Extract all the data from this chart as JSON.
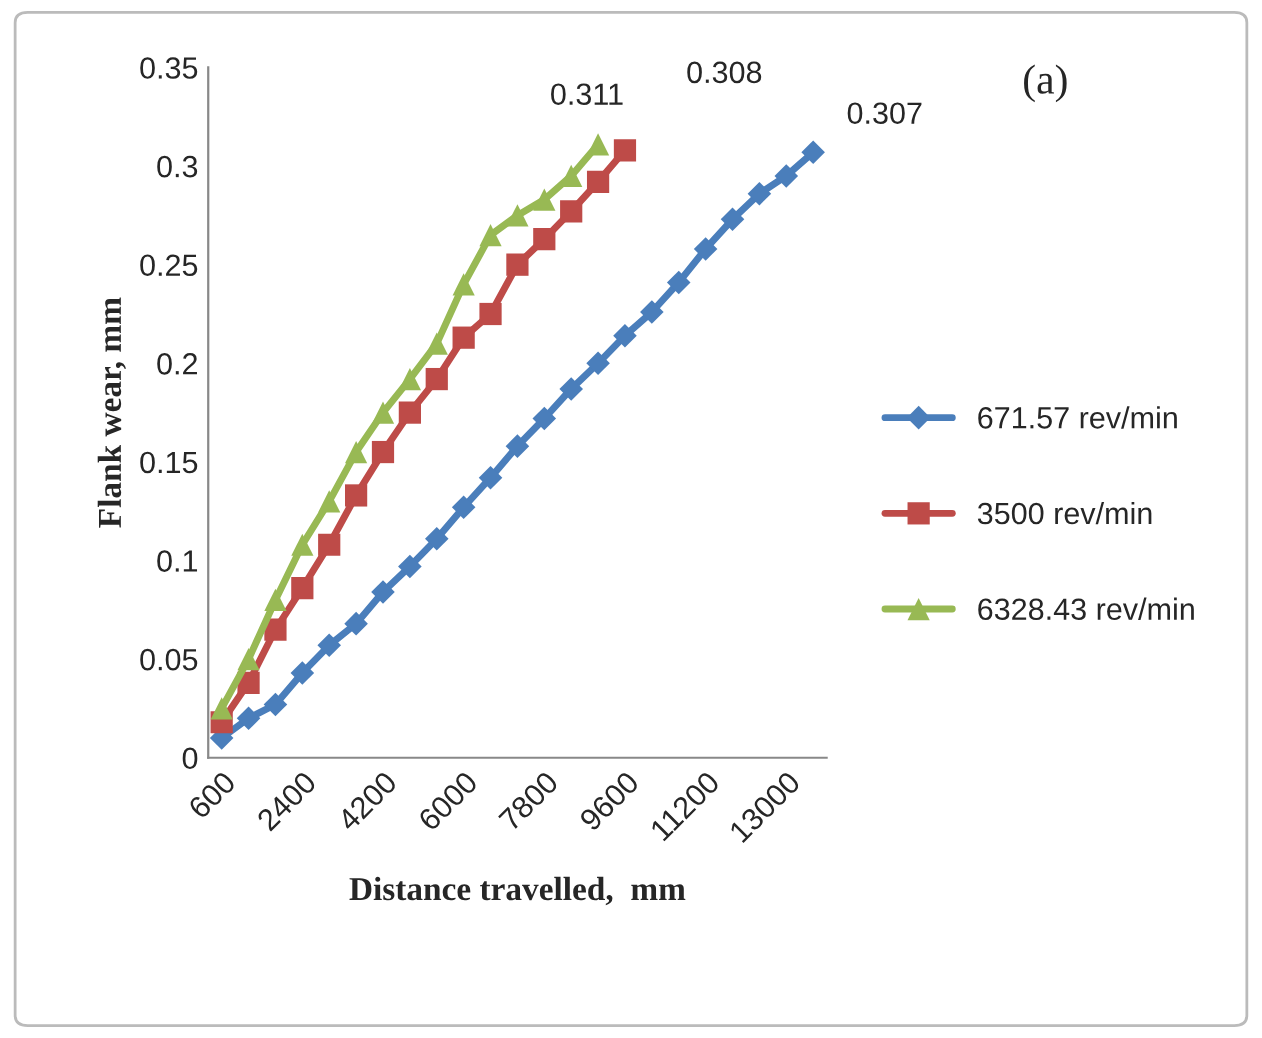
{
  "chart_data": {
    "type": "line",
    "xlabel": "Distance travelled,  mm",
    "ylabel": "Flank wear, mm",
    "categories": [
      "600",
      null,
      null,
      "2400",
      null,
      null,
      "4200",
      null,
      null,
      "6000",
      null,
      null,
      "7800",
      null,
      null,
      "9600",
      null,
      null,
      "11200",
      null,
      null,
      "13000",
      null
    ],
    "series": [
      {
        "name": "671.57 rev/min",
        "color": "#4a7ebb",
        "marker": "diamond",
        "values": [
          0.01,
          0.02,
          0.027,
          0.043,
          0.057,
          0.068,
          0.084,
          0.097,
          0.111,
          0.127,
          0.142,
          0.158,
          0.172,
          0.187,
          0.2,
          0.214,
          0.226,
          0.241,
          0.258,
          0.273,
          0.286,
          0.295,
          0.307
        ],
        "value_labels": [
          null,
          null,
          null,
          null,
          null,
          null,
          null,
          null,
          null,
          null,
          null,
          null,
          null,
          null,
          null,
          null,
          null,
          null,
          null,
          null,
          null,
          null,
          "0.307"
        ]
      },
      {
        "name": "3500 rev/min",
        "color": "#be4b48",
        "marker": "square",
        "values": [
          0.018,
          0.038,
          0.065,
          0.086,
          0.108,
          0.133,
          0.155,
          0.175,
          0.192,
          0.213,
          0.225,
          0.25,
          0.263,
          0.277,
          0.292,
          0.308,
          null,
          null,
          null,
          null,
          null,
          null,
          null
        ],
        "value_labels": [
          null,
          null,
          null,
          null,
          null,
          null,
          null,
          null,
          null,
          null,
          null,
          null,
          null,
          null,
          null,
          "0.308",
          null,
          null,
          null,
          null,
          null,
          null,
          null
        ]
      },
      {
        "name": "6328.43 rev/min",
        "color": "#98b954",
        "marker": "triangle",
        "values": [
          0.025,
          0.05,
          0.08,
          0.108,
          0.13,
          0.155,
          0.175,
          0.192,
          0.21,
          0.24,
          0.265,
          0.275,
          0.283,
          0.295,
          0.311,
          null,
          null,
          null,
          null,
          null,
          null,
          null,
          null
        ],
        "value_labels": [
          null,
          null,
          null,
          null,
          null,
          null,
          null,
          null,
          null,
          null,
          null,
          null,
          null,
          null,
          "0.311",
          null,
          null,
          null,
          null,
          null,
          null,
          null,
          null
        ]
      }
    ],
    "ylim": [
      0,
      0.35
    ],
    "yticks": [
      0,
      0.05,
      0.1,
      0.15,
      0.2,
      0.25,
      0.3,
      0.35
    ],
    "grid": false,
    "legend": "right",
    "annotations": [
      "(a)"
    ]
  }
}
